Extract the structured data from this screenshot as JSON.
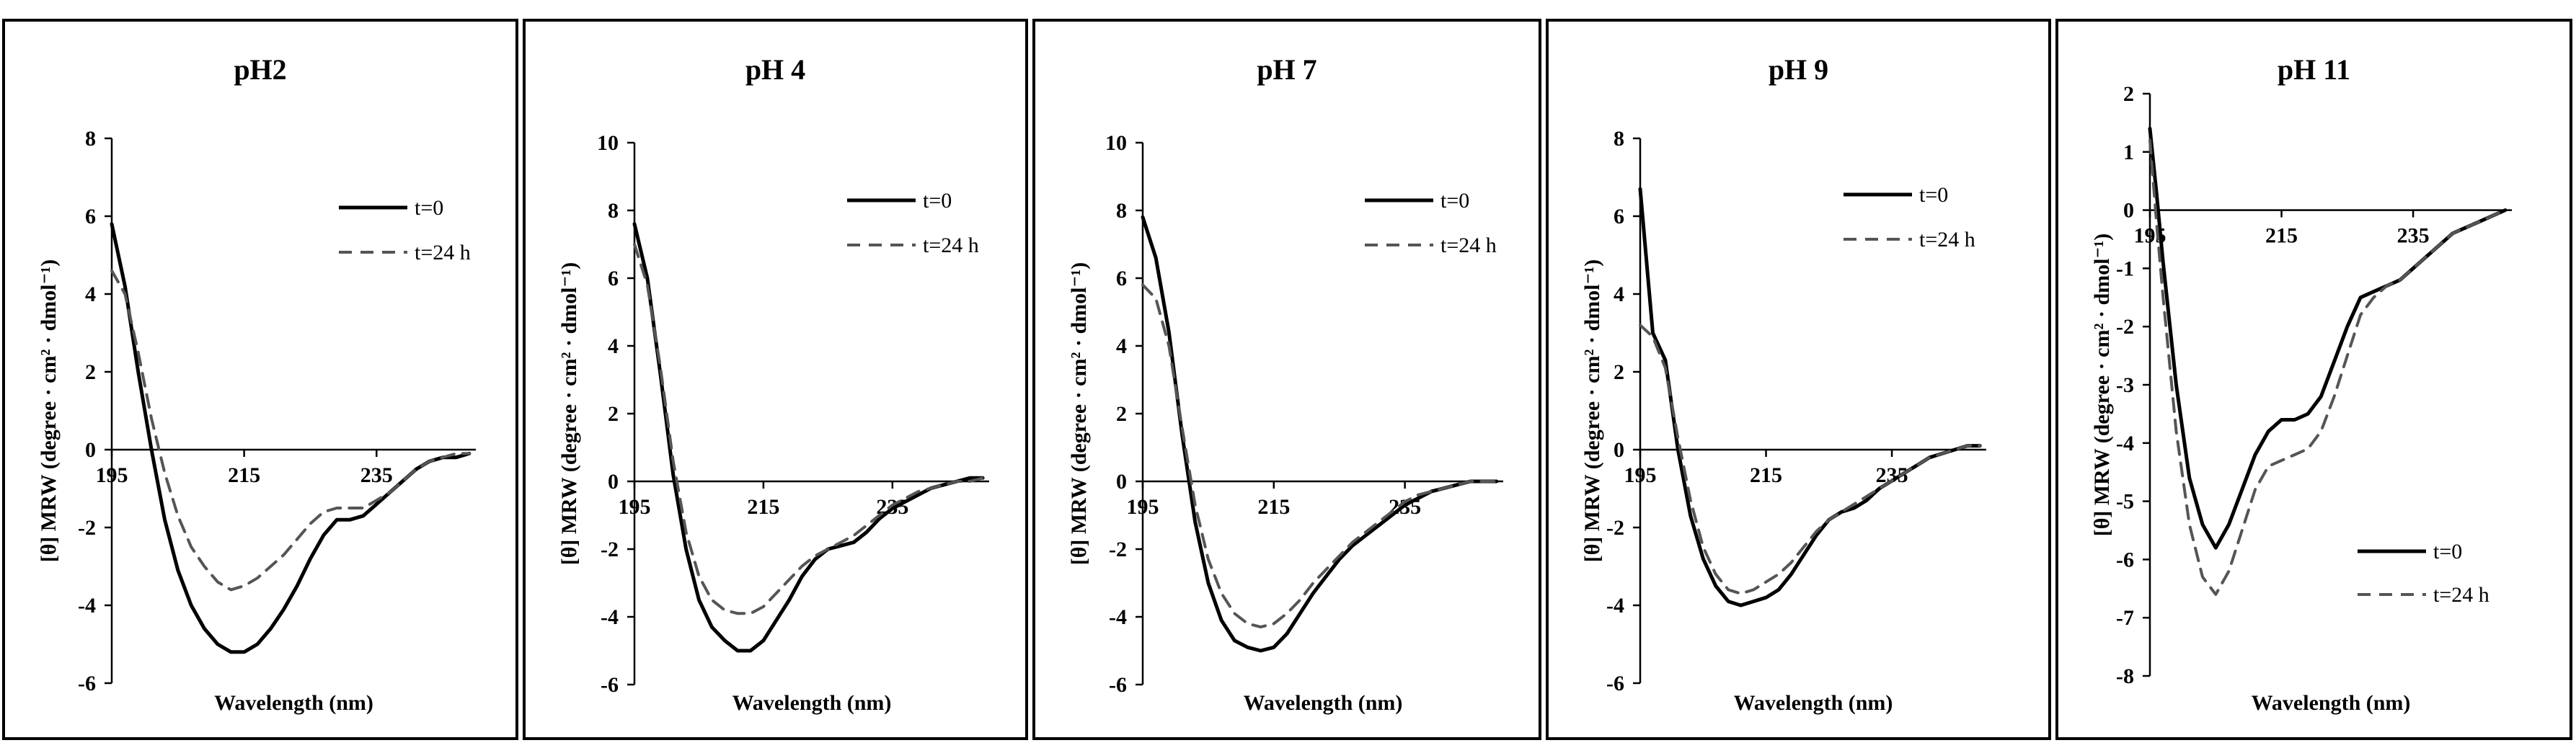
{
  "figure_y_label": "[θ] MRW (degree · cm² · dmol⁻¹)",
  "chart_data": [
    {
      "type": "line",
      "title": "pH2",
      "xlabel": "Wavelength (nm)",
      "ylabel": "[θ] MRW (degree · cm² · dmol⁻¹)",
      "xlim": [
        195,
        250
      ],
      "ylim": [
        -6,
        8
      ],
      "y_ticks": [
        8,
        6,
        4,
        2,
        0,
        -2,
        -4,
        -6
      ],
      "x_ticks": [
        195,
        215,
        235
      ],
      "legend_position": "top-right",
      "series": [
        {
          "name": "t=0",
          "style": "solid",
          "x": [
            195,
            197,
            199,
            201,
            203,
            205,
            207,
            209,
            211,
            213,
            215,
            217,
            219,
            221,
            223,
            225,
            227,
            229,
            231,
            233,
            235,
            237,
            239,
            241,
            243,
            245,
            247,
            249
          ],
          "y": [
            5.8,
            4.2,
            2.0,
            0.0,
            -1.8,
            -3.1,
            -4.0,
            -4.6,
            -5.0,
            -5.2,
            -5.2,
            -5.0,
            -4.6,
            -4.1,
            -3.5,
            -2.8,
            -2.2,
            -1.8,
            -1.8,
            -1.7,
            -1.4,
            -1.1,
            -0.8,
            -0.5,
            -0.3,
            -0.2,
            -0.2,
            -0.1
          ]
        },
        {
          "name": "t=24 h",
          "style": "dashed",
          "x": [
            195,
            197,
            199,
            201,
            203,
            205,
            207,
            209,
            211,
            213,
            215,
            217,
            219,
            221,
            223,
            225,
            227,
            229,
            231,
            233,
            235,
            237,
            239,
            241,
            243,
            245,
            247,
            249
          ],
          "y": [
            4.6,
            4.0,
            2.5,
            0.8,
            -0.6,
            -1.7,
            -2.5,
            -3.0,
            -3.4,
            -3.6,
            -3.5,
            -3.3,
            -3.0,
            -2.7,
            -2.3,
            -1.9,
            -1.6,
            -1.5,
            -1.5,
            -1.5,
            -1.3,
            -1.1,
            -0.8,
            -0.5,
            -0.3,
            -0.2,
            -0.1,
            -0.1
          ]
        }
      ]
    },
    {
      "type": "line",
      "title": "pH 4",
      "xlabel": "Wavelength (nm)",
      "ylabel": "[θ] MRW (degree · cm² · dmol⁻¹)",
      "xlim": [
        195,
        250
      ],
      "ylim": [
        -6,
        10
      ],
      "y_ticks": [
        10,
        8,
        6,
        4,
        2,
        0,
        -2,
        -4,
        -6
      ],
      "x_ticks": [
        195,
        215,
        235
      ],
      "legend_position": "top-right",
      "series": [
        {
          "name": "t=0",
          "style": "solid",
          "x": [
            195,
            197,
            199,
            201,
            203,
            205,
            207,
            209,
            211,
            213,
            215,
            217,
            219,
            221,
            223,
            225,
            227,
            229,
            231,
            233,
            235,
            237,
            239,
            241,
            243,
            245,
            247,
            249
          ],
          "y": [
            7.6,
            6.0,
            3.2,
            0.2,
            -2.0,
            -3.5,
            -4.3,
            -4.7,
            -5.0,
            -5.0,
            -4.7,
            -4.1,
            -3.5,
            -2.8,
            -2.3,
            -2.0,
            -1.9,
            -1.8,
            -1.5,
            -1.1,
            -0.8,
            -0.6,
            -0.4,
            -0.2,
            -0.1,
            0.0,
            0.1,
            0.1
          ]
        },
        {
          "name": "t=24 h",
          "style": "dashed",
          "x": [
            195,
            197,
            199,
            201,
            203,
            205,
            207,
            209,
            211,
            213,
            215,
            217,
            219,
            221,
            223,
            225,
            227,
            229,
            231,
            233,
            235,
            237,
            239,
            241,
            243,
            245,
            247,
            249
          ],
          "y": [
            7.0,
            5.8,
            3.4,
            0.6,
            -1.5,
            -2.8,
            -3.5,
            -3.8,
            -3.9,
            -3.9,
            -3.7,
            -3.3,
            -2.9,
            -2.5,
            -2.2,
            -2.0,
            -1.8,
            -1.6,
            -1.3,
            -1.0,
            -0.7,
            -0.5,
            -0.3,
            -0.2,
            -0.1,
            0.0,
            0.0,
            0.1
          ]
        }
      ]
    },
    {
      "type": "line",
      "title": "pH 7",
      "xlabel": "Wavelength (nm)",
      "ylabel": "[θ] MRW (degree · cm² · dmol⁻¹)",
      "xlim": [
        195,
        250
      ],
      "ylim": [
        -6,
        10
      ],
      "y_ticks": [
        10,
        8,
        6,
        4,
        2,
        0,
        -2,
        -4,
        -6
      ],
      "x_ticks": [
        195,
        215,
        235
      ],
      "legend_position": "top-right",
      "series": [
        {
          "name": "t=0",
          "style": "solid",
          "x": [
            195,
            197,
            199,
            201,
            203,
            205,
            207,
            209,
            211,
            213,
            215,
            217,
            219,
            221,
            223,
            225,
            227,
            229,
            231,
            233,
            235,
            237,
            239,
            241,
            243,
            245,
            247,
            249
          ],
          "y": [
            7.8,
            6.6,
            4.4,
            1.4,
            -1.2,
            -3.0,
            -4.1,
            -4.7,
            -4.9,
            -5.0,
            -4.9,
            -4.5,
            -3.9,
            -3.3,
            -2.8,
            -2.3,
            -1.9,
            -1.6,
            -1.3,
            -1.0,
            -0.7,
            -0.5,
            -0.3,
            -0.2,
            -0.1,
            0.0,
            0.0,
            0.0
          ]
        },
        {
          "name": "t=24 h",
          "style": "dashed",
          "x": [
            195,
            197,
            199,
            201,
            203,
            205,
            207,
            209,
            211,
            213,
            215,
            217,
            219,
            221,
            223,
            225,
            227,
            229,
            231,
            233,
            235,
            237,
            239,
            241,
            243,
            245,
            247,
            249
          ],
          "y": [
            5.8,
            5.4,
            4.0,
            1.6,
            -0.7,
            -2.3,
            -3.3,
            -3.9,
            -4.2,
            -4.3,
            -4.2,
            -3.9,
            -3.5,
            -3.0,
            -2.6,
            -2.2,
            -1.8,
            -1.5,
            -1.2,
            -0.9,
            -0.6,
            -0.4,
            -0.3,
            -0.2,
            -0.1,
            0.0,
            0.0,
            0.0
          ]
        }
      ]
    },
    {
      "type": "line",
      "title": "pH 9",
      "xlabel": "Wavelength (nm)",
      "ylabel": "[θ] MRW (degree · cm² · dmol⁻¹)",
      "xlim": [
        195,
        250
      ],
      "ylim": [
        -6,
        8
      ],
      "y_ticks": [
        8,
        6,
        4,
        2,
        0,
        -2,
        -4,
        -6
      ],
      "x_ticks": [
        195,
        215,
        235
      ],
      "legend_position": "top-right",
      "series": [
        {
          "name": "t=0",
          "style": "solid",
          "x": [
            195,
            197,
            199,
            201,
            203,
            205,
            207,
            209,
            211,
            213,
            215,
            217,
            219,
            221,
            223,
            225,
            227,
            229,
            231,
            233,
            235,
            237,
            239,
            241,
            243,
            245,
            247,
            249
          ],
          "y": [
            6.7,
            3.0,
            2.3,
            0.0,
            -1.7,
            -2.8,
            -3.5,
            -3.9,
            -4.0,
            -3.9,
            -3.8,
            -3.6,
            -3.2,
            -2.7,
            -2.2,
            -1.8,
            -1.6,
            -1.5,
            -1.3,
            -1.0,
            -0.8,
            -0.6,
            -0.4,
            -0.2,
            -0.1,
            0.0,
            0.1,
            0.1
          ]
        },
        {
          "name": "t=24 h",
          "style": "dashed",
          "x": [
            195,
            197,
            199,
            201,
            203,
            205,
            207,
            209,
            211,
            213,
            215,
            217,
            219,
            221,
            223,
            225,
            227,
            229,
            231,
            233,
            235,
            237,
            239,
            241,
            243,
            245,
            247,
            249
          ],
          "y": [
            3.2,
            2.9,
            2.1,
            0.3,
            -1.3,
            -2.5,
            -3.2,
            -3.6,
            -3.7,
            -3.6,
            -3.4,
            -3.2,
            -2.9,
            -2.5,
            -2.1,
            -1.8,
            -1.6,
            -1.4,
            -1.2,
            -1.0,
            -0.8,
            -0.6,
            -0.4,
            -0.2,
            -0.1,
            0.0,
            0.1,
            0.1
          ]
        }
      ]
    },
    {
      "type": "line",
      "title": "pH 11",
      "xlabel": "Wavelength (nm)",
      "ylabel": "[θ] MRW (degree · cm² · dmol⁻¹)",
      "xlim": [
        195,
        250
      ],
      "ylim": [
        -8,
        2
      ],
      "y_ticks": [
        2,
        1,
        0,
        -1,
        -2,
        -3,
        -4,
        -5,
        -6,
        -7,
        -8
      ],
      "x_ticks": [
        195,
        215,
        235
      ],
      "legend_position": "bottom-right",
      "series": [
        {
          "name": "t=0",
          "style": "solid",
          "x": [
            195,
            196,
            197,
            199,
            201,
            203,
            205,
            207,
            209,
            211,
            213,
            215,
            217,
            219,
            221,
            223,
            225,
            227,
            229,
            231,
            233,
            235,
            237,
            239,
            241,
            243,
            245,
            247,
            249
          ],
          "y": [
            1.4,
            0.3,
            -0.9,
            -3.0,
            -4.6,
            -5.4,
            -5.8,
            -5.4,
            -4.8,
            -4.2,
            -3.8,
            -3.6,
            -3.6,
            -3.5,
            -3.2,
            -2.6,
            -2.0,
            -1.5,
            -1.4,
            -1.3,
            -1.2,
            -1.0,
            -0.8,
            -0.6,
            -0.4,
            -0.3,
            -0.2,
            -0.1,
            0.0
          ]
        },
        {
          "name": "t=24 h",
          "style": "dashed",
          "x": [
            195,
            196,
            197,
            199,
            201,
            203,
            205,
            207,
            209,
            211,
            213,
            215,
            217,
            219,
            221,
            223,
            225,
            227,
            229,
            231,
            233,
            235,
            237,
            239,
            241,
            243,
            245,
            247,
            249
          ],
          "y": [
            1.2,
            -0.2,
            -1.5,
            -3.8,
            -5.4,
            -6.3,
            -6.6,
            -6.2,
            -5.5,
            -4.8,
            -4.4,
            -4.3,
            -4.2,
            -4.1,
            -3.8,
            -3.2,
            -2.5,
            -1.8,
            -1.5,
            -1.3,
            -1.2,
            -1.0,
            -0.8,
            -0.6,
            -0.4,
            -0.3,
            -0.2,
            -0.1,
            0.0
          ]
        }
      ]
    }
  ]
}
